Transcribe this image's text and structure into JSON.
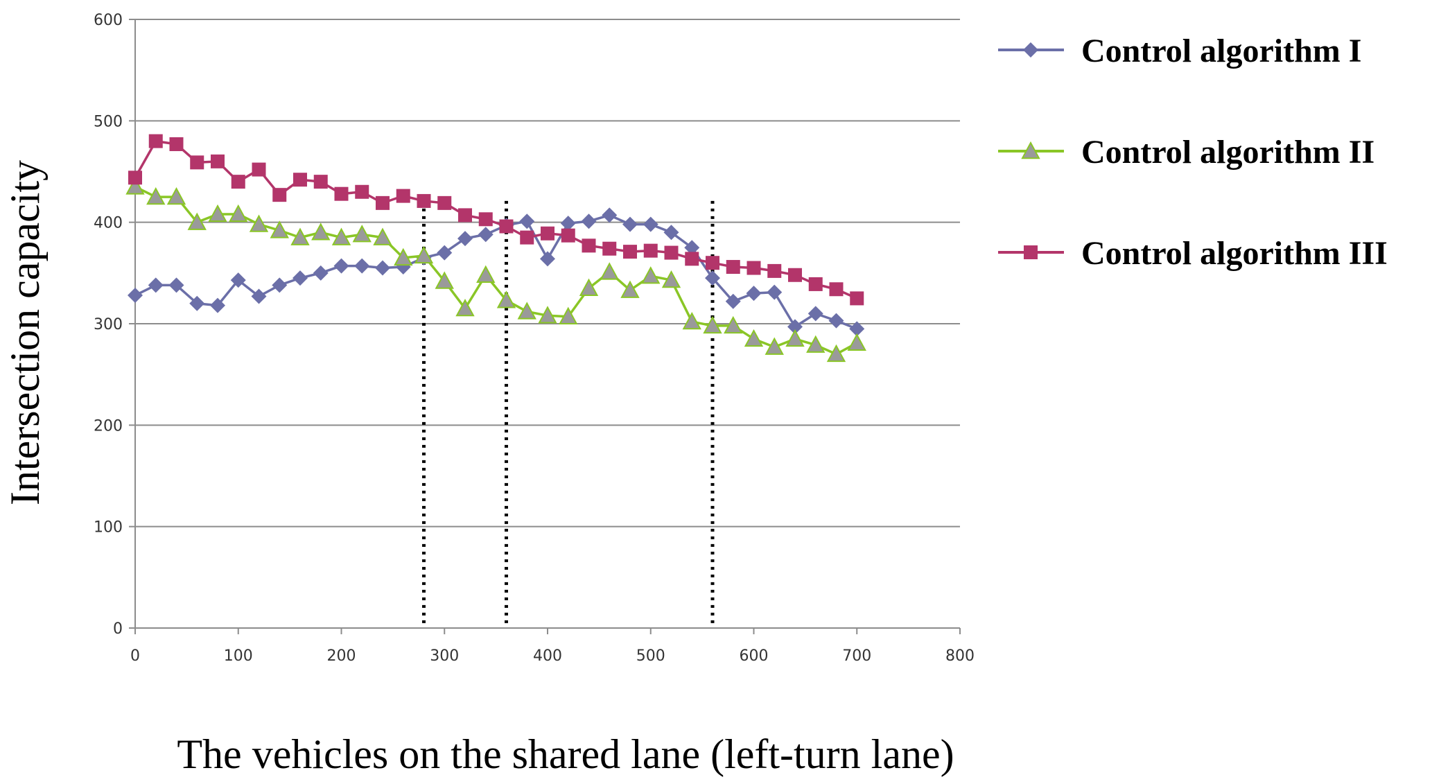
{
  "chart_data": {
    "type": "line",
    "title": "",
    "xlabel": "The vehicles on the shared lane (left-turn lane)",
    "ylabel": "Intersection capacity",
    "xlim": [
      0,
      800
    ],
    "ylim": [
      0,
      600
    ],
    "x_ticks": [
      "0",
      "100",
      "200",
      "300",
      "400",
      "500",
      "600",
      "700",
      "800"
    ],
    "y_ticks": [
      "0",
      "100",
      "200",
      "300",
      "400",
      "500",
      "600"
    ],
    "grid": "horizontal",
    "legend_position": "right",
    "x": [
      0,
      20,
      40,
      60,
      80,
      100,
      120,
      140,
      160,
      180,
      200,
      220,
      240,
      260,
      280,
      300,
      320,
      340,
      360,
      380,
      400,
      420,
      440,
      460,
      480,
      500,
      520,
      540,
      560,
      580,
      600,
      620,
      640,
      660,
      680,
      700
    ],
    "series": [
      {
        "name": "Control algorithm I",
        "color": "#6b6fa8",
        "marker": "diamond",
        "values": [
          328,
          338,
          338,
          320,
          318,
          343,
          327,
          338,
          345,
          350,
          357,
          357,
          355,
          356,
          365,
          370,
          384,
          388,
          397,
          401,
          364,
          399,
          401,
          407,
          398,
          398,
          390,
          375,
          345,
          322,
          330,
          331,
          297,
          310,
          303,
          295
        ]
      },
      {
        "name": "Control algorithm II",
        "color": "#8ac626",
        "marker": "triangle",
        "values": [
          435,
          425,
          425,
          400,
          408,
          408,
          398,
          392,
          385,
          390,
          385,
          388,
          385,
          365,
          367,
          342,
          315,
          348,
          323,
          312,
          308,
          307,
          335,
          351,
          333,
          347,
          343,
          302,
          298,
          298,
          285,
          277,
          285,
          279,
          270,
          281
        ]
      },
      {
        "name": "Control algorithm III",
        "color": "#b3356a",
        "marker": "square",
        "values": [
          444,
          480,
          477,
          459,
          460,
          440,
          452,
          427,
          442,
          440,
          428,
          430,
          419,
          426,
          421,
          419,
          407,
          403,
          396,
          385,
          389,
          387,
          377,
          374,
          371,
          372,
          370,
          364,
          360,
          356,
          355,
          352,
          348,
          339,
          334,
          325
        ]
      }
    ],
    "reference_lines_x": [
      280,
      360,
      560
    ]
  }
}
